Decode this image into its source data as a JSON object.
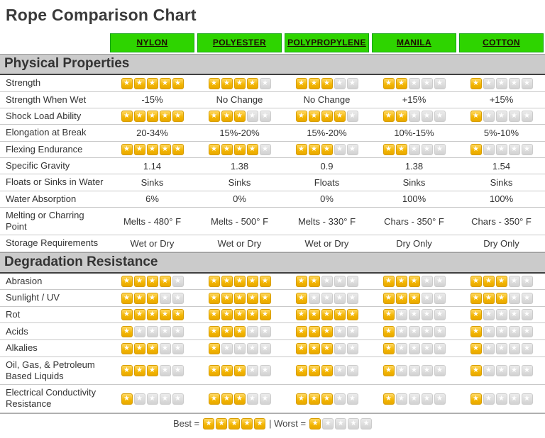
{
  "chart_data": {
    "type": "table",
    "title": "Rope Comparison Chart",
    "columns": [
      "NYLON",
      "POLYESTER",
      "POLYPROPYLENE",
      "MANILA",
      "COTTON"
    ],
    "rating_max": 5,
    "sections": [
      {
        "title": "Physical Properties",
        "rows": [
          {
            "label": "Strength",
            "type": "stars",
            "values": [
              5,
              4,
              3,
              2,
              1
            ]
          },
          {
            "label": "Strength When Wet",
            "type": "text",
            "values": [
              "-15%",
              "No Change",
              "No Change",
              "+15%",
              "+15%"
            ]
          },
          {
            "label": "Shock Load Ability",
            "type": "stars",
            "values": [
              5,
              3,
              4,
              2,
              1
            ]
          },
          {
            "label": "Elongation at Break",
            "type": "text",
            "values": [
              "20-34%",
              "15%-20%",
              "15%-20%",
              "10%-15%",
              "5%-10%"
            ]
          },
          {
            "label": "Flexing Endurance",
            "type": "stars",
            "values": [
              5,
              4,
              3,
              2,
              1
            ]
          },
          {
            "label": "Specific Gravity",
            "type": "text",
            "values": [
              "1.14",
              "1.38",
              "0.9",
              "1.38",
              "1.54"
            ]
          },
          {
            "label": "Floats or Sinks in Water",
            "type": "text",
            "values": [
              "Sinks",
              "Sinks",
              "Floats",
              "Sinks",
              "Sinks"
            ]
          },
          {
            "label": "Water Absorption",
            "type": "text",
            "values": [
              "6%",
              "0%",
              "0%",
              "100%",
              "100%"
            ]
          },
          {
            "label": "Melting or Charring Point",
            "type": "text",
            "values": [
              "Melts - 480° F",
              "Melts - 500° F",
              "Melts - 330° F",
              "Chars - 350° F",
              "Chars - 350° F"
            ]
          },
          {
            "label": "Storage Requirements",
            "type": "text",
            "values": [
              "Wet or Dry",
              "Wet or Dry",
              "Wet or Dry",
              "Dry Only",
              "Dry Only"
            ]
          }
        ]
      },
      {
        "title": "Degradation Resistance",
        "rows": [
          {
            "label": "Abrasion",
            "type": "stars",
            "values": [
              4,
              5,
              2,
              3,
              3
            ]
          },
          {
            "label": "Sunlight / UV",
            "type": "stars",
            "values": [
              3,
              5,
              1,
              3,
              3
            ]
          },
          {
            "label": "Rot",
            "type": "stars",
            "values": [
              5,
              5,
              5,
              1,
              1
            ]
          },
          {
            "label": "Acids",
            "type": "stars",
            "values": [
              1,
              3,
              3,
              1,
              1
            ]
          },
          {
            "label": "Alkalies",
            "type": "stars",
            "values": [
              3,
              1,
              3,
              1,
              1
            ]
          },
          {
            "label": "Oil, Gas, & Petroleum Based Liquids",
            "type": "stars",
            "values": [
              3,
              3,
              3,
              1,
              1
            ]
          },
          {
            "label": "Electrical Conductivity Resistance",
            "type": "stars",
            "values": [
              1,
              3,
              3,
              1,
              1
            ]
          }
        ]
      }
    ],
    "legend": {
      "best_label": "Best =",
      "worst_label": "| Worst =",
      "best_stars": 5,
      "worst_stars": 1
    }
  },
  "colors": {
    "header_green": "#2ed400",
    "star_gold": "#f3b500",
    "star_empty": "#dcdcdc",
    "section_gray": "#cbcbcb"
  }
}
